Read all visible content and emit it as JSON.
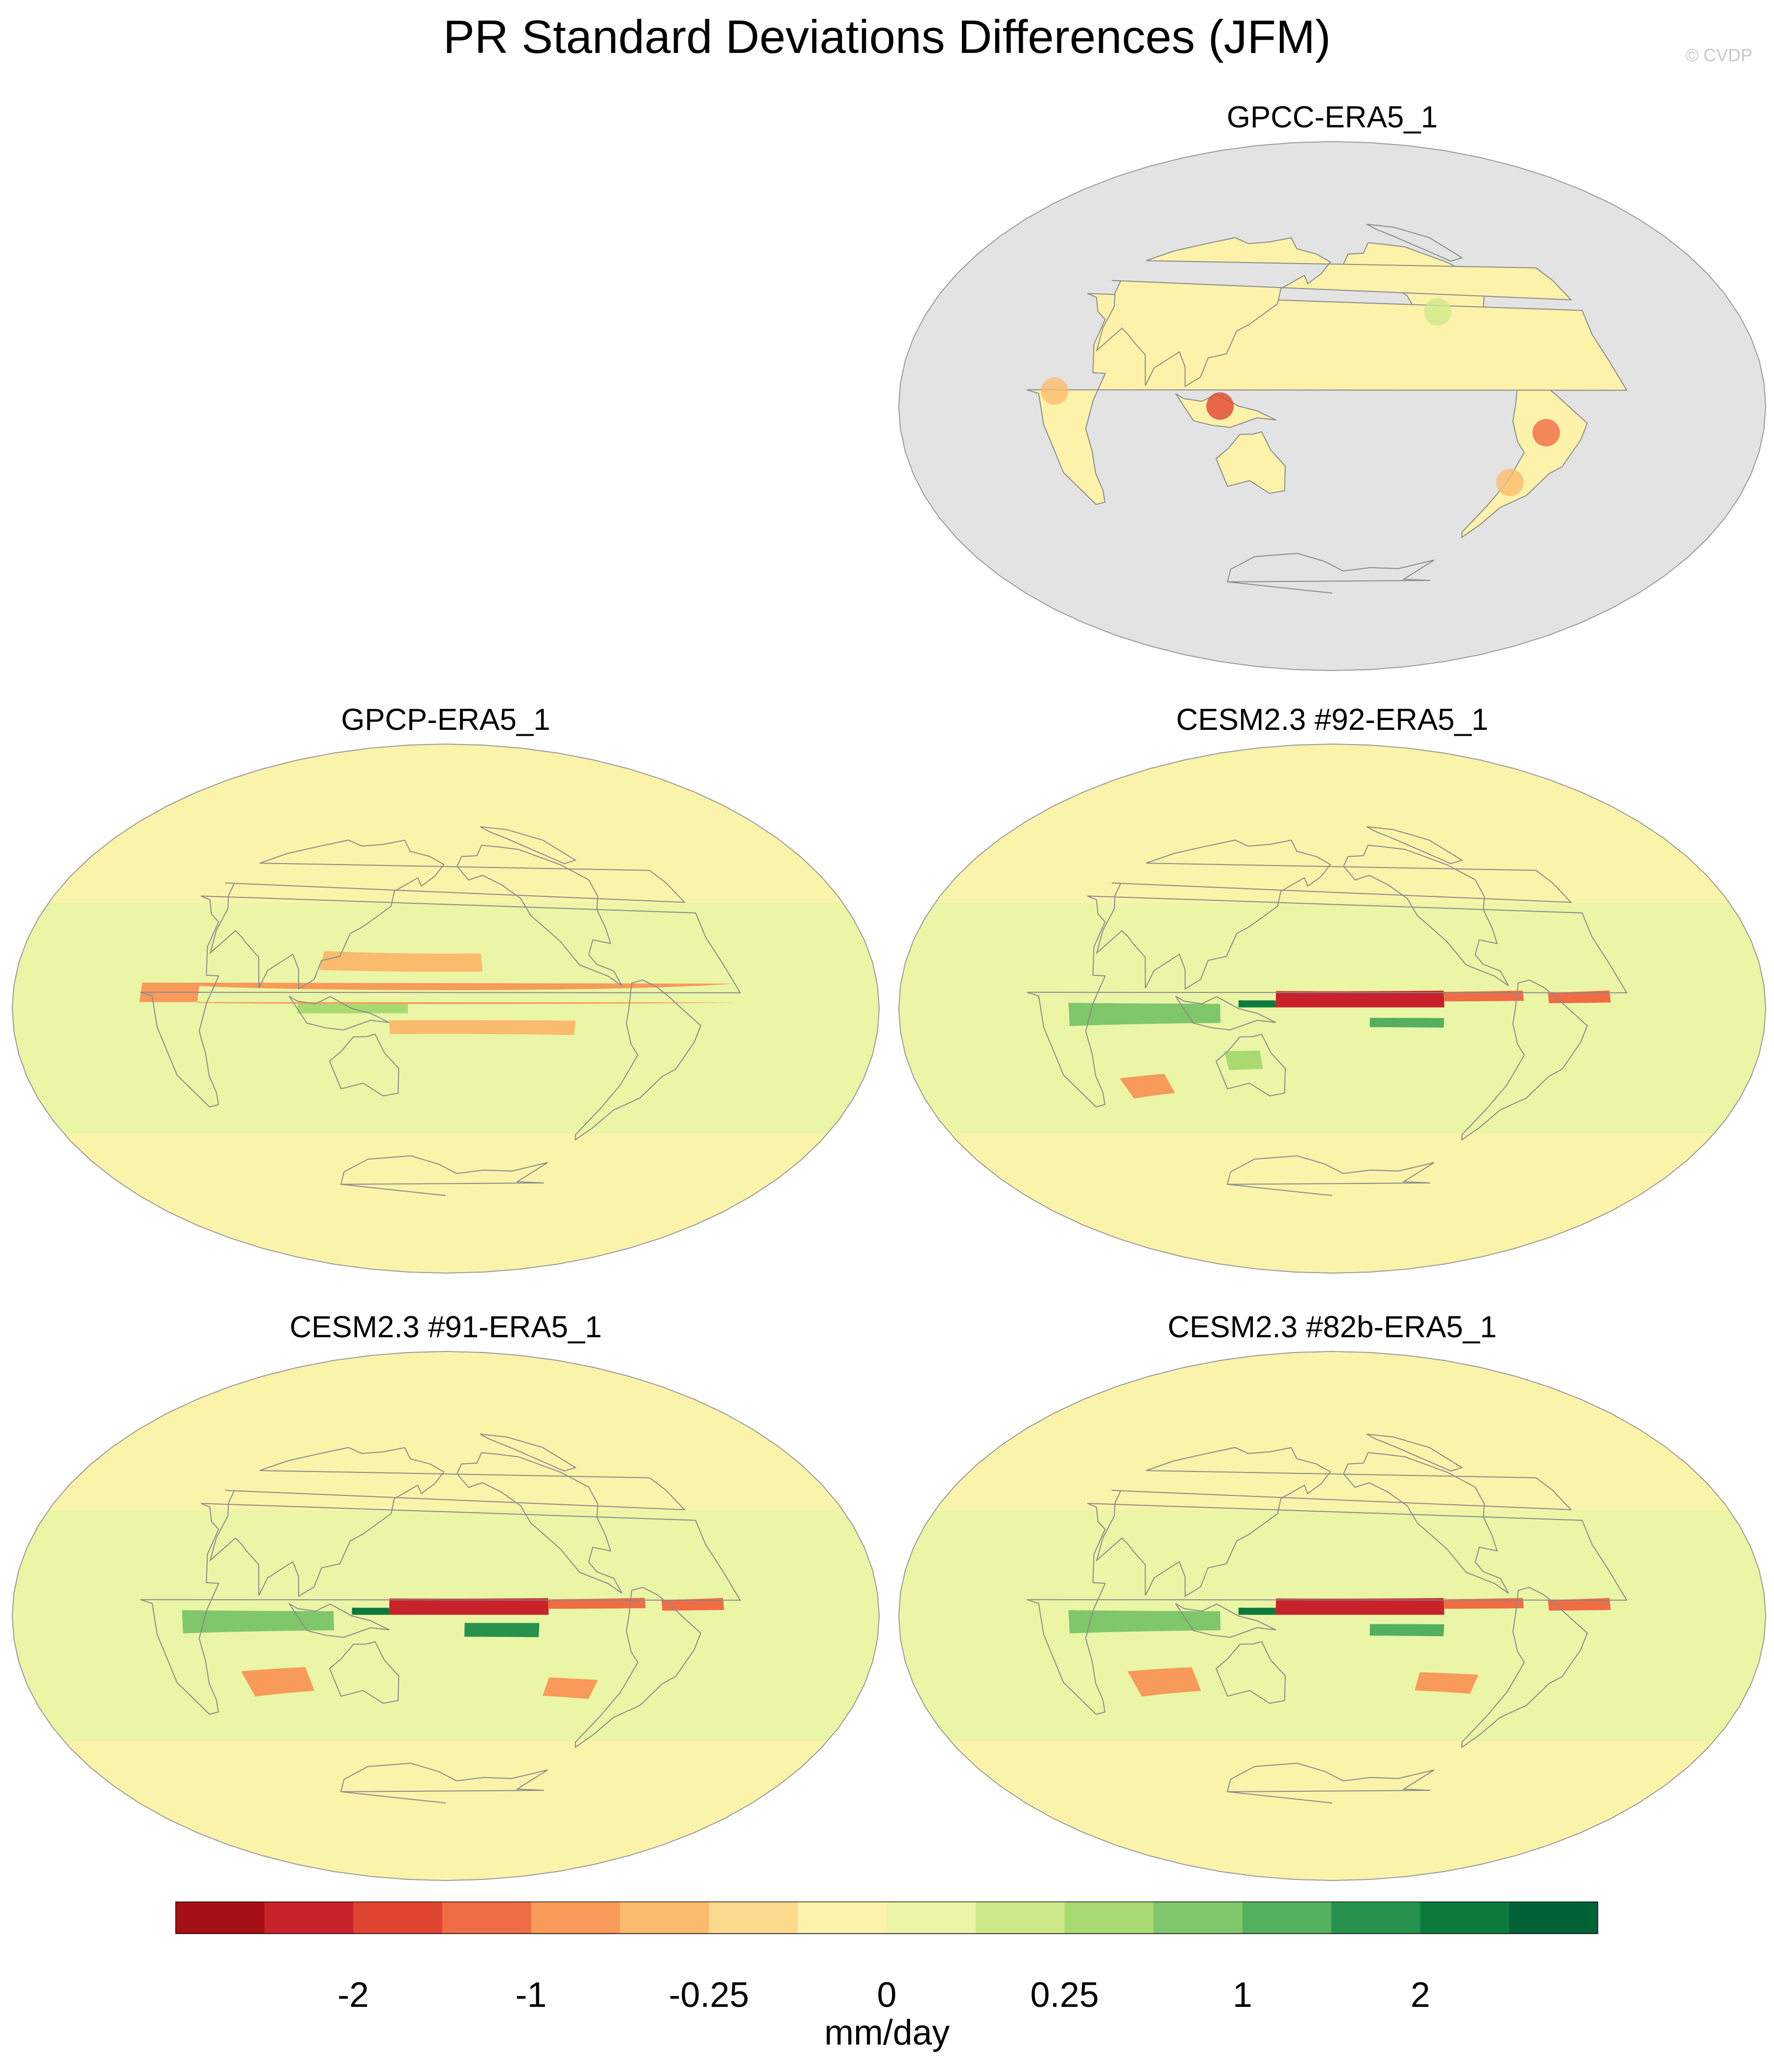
{
  "figure": {
    "title": "PR Standard Deviations Differences (JFM)",
    "credit": "© CVDP"
  },
  "panels": [
    {
      "id": "gpcc",
      "title": "GPCC-ERA5_1",
      "ocean_masked": true
    },
    {
      "id": "gpcp",
      "title": "GPCP-ERA5_1",
      "ocean_masked": false
    },
    {
      "id": "cesm92",
      "title": "CESM2.3 #92-ERA5_1",
      "ocean_masked": false
    },
    {
      "id": "cesm91",
      "title": "CESM2.3 #91-ERA5_1",
      "ocean_masked": false
    },
    {
      "id": "cesm82b",
      "title": "CESM2.3 #82b-ERA5_1",
      "ocean_masked": false
    }
  ],
  "colorbar": {
    "units": "mm/day",
    "colors": [
      "#a50f15",
      "#c8222a",
      "#e04530",
      "#f06c45",
      "#f89a5a",
      "#fbbb6e",
      "#fdd98e",
      "#fdf2aa",
      "#eaf5a6",
      "#cde98a",
      "#a9da72",
      "#7fc76a",
      "#52b05e",
      "#27924e",
      "#0c7a3c",
      "#006236"
    ],
    "tick_labels": [
      "-2",
      "-1",
      "-0.25",
      "0",
      "0.25",
      "1",
      "2"
    ],
    "tick_boundary_index": [
      2,
      4,
      6,
      8,
      10,
      12,
      14
    ]
  },
  "map_style": {
    "ocean_mask_color": "#e3e3e3",
    "coast_color": "#8a8a8a"
  }
}
